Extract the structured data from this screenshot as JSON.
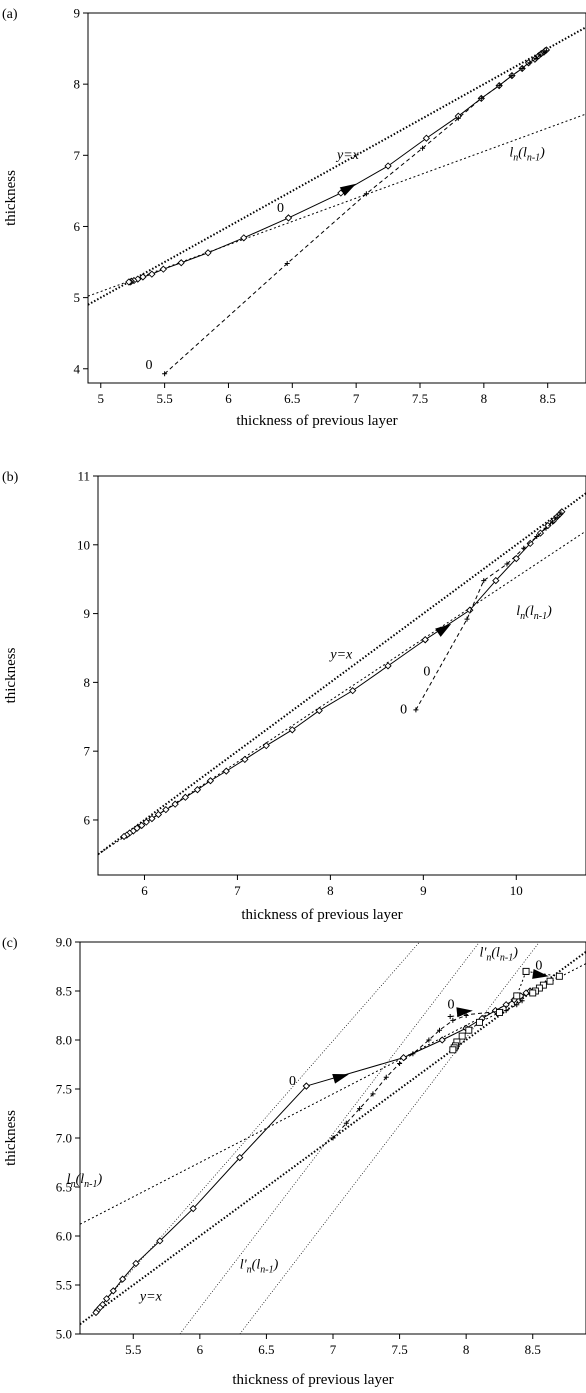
{
  "chart_data": [
    {
      "type": "line",
      "panel_label": "(a)",
      "xlabel": "thickness of previous layer",
      "ylabel": "thickness",
      "xlim": [
        4.9,
        8.8
      ],
      "ylim": [
        3.8,
        9.0
      ],
      "xticks": [
        5,
        5.5,
        6,
        6.5,
        7,
        7.5,
        8,
        8.5
      ],
      "xtick_labels": [
        "5",
        "5.5",
        "6",
        "6.5",
        "7",
        "7.5",
        "8",
        "8.5"
      ],
      "yticks": [
        4,
        5,
        6,
        7,
        8,
        9
      ],
      "ytick_labels": [
        "4",
        "5",
        "6",
        "7",
        "8",
        "9"
      ],
      "lines": [
        {
          "style": "dotted-bold",
          "points": [
            [
              4.9,
              4.9
            ],
            [
              8.8,
              8.8
            ]
          ]
        },
        {
          "style": "dotted",
          "points": [
            [
              4.9,
              5.02
            ],
            [
              8.8,
              7.58
            ]
          ]
        }
      ],
      "series": [
        {
          "style": "solid",
          "marker": "diamond",
          "points": [
            [
              6.47,
              6.12
            ],
            [
              6.12,
              5.84
            ],
            [
              5.84,
              5.63
            ],
            [
              5.63,
              5.49
            ],
            [
              5.49,
              5.4
            ],
            [
              5.4,
              5.33
            ],
            [
              5.33,
              5.29
            ],
            [
              5.29,
              5.26
            ],
            [
              5.26,
              5.24
            ],
            [
              5.24,
              5.23
            ],
            [
              5.23,
              5.22
            ],
            [
              5.22,
              5.22
            ]
          ]
        },
        {
          "style": "solid",
          "marker": "diamond",
          "points": [
            [
              6.47,
              6.12
            ],
            [
              6.88,
              6.47
            ],
            [
              7.25,
              6.85
            ],
            [
              7.55,
              7.24
            ],
            [
              7.8,
              7.55
            ],
            [
              7.98,
              7.8
            ],
            [
              8.12,
              7.98
            ],
            [
              8.22,
              8.12
            ],
            [
              8.3,
              8.22
            ],
            [
              8.35,
              8.3
            ],
            [
              8.4,
              8.35
            ],
            [
              8.43,
              8.4
            ],
            [
              8.45,
              8.43
            ],
            [
              8.47,
              8.45
            ],
            [
              8.48,
              8.47
            ],
            [
              8.49,
              8.48
            ]
          ]
        },
        {
          "style": "dashed",
          "marker": "plus",
          "points": [
            [
              5.5,
              3.93
            ],
            [
              6.46,
              5.48
            ],
            [
              7.08,
              6.46
            ],
            [
              7.52,
              7.1
            ],
            [
              7.8,
              7.52
            ],
            [
              7.98,
              7.8
            ],
            [
              8.12,
              7.98
            ],
            [
              8.22,
              8.12
            ],
            [
              8.3,
              8.22
            ],
            [
              8.36,
              8.3
            ],
            [
              8.41,
              8.36
            ],
            [
              8.44,
              8.41
            ],
            [
              8.47,
              8.44
            ],
            [
              8.49,
              8.47
            ]
          ]
        }
      ],
      "arrows": [
        [
          7.0,
          6.6
        ]
      ],
      "annotations": [
        {
          "text": "y=x",
          "at": [
            6.85,
            6.95
          ]
        },
        {
          "text": "l_n(l_{n-1})",
          "at": [
            8.2,
            6.98
          ]
        },
        {
          "text": "0",
          "at": [
            6.38,
            6.2
          ]
        },
        {
          "text": "0",
          "at": [
            5.35,
            4.0
          ]
        }
      ]
    },
    {
      "type": "line",
      "panel_label": "(b)",
      "xlabel": "thickness of previous layer",
      "ylabel": "thickness",
      "xlim": [
        5.5,
        10.75
      ],
      "ylim": [
        5.2,
        11.0
      ],
      "xticks": [
        6,
        7,
        8,
        9,
        10
      ],
      "xtick_labels": [
        "6",
        "7",
        "8",
        "9",
        "10"
      ],
      "yticks": [
        6,
        7,
        8,
        9,
        10,
        11
      ],
      "ytick_labels": [
        "6",
        "7",
        "8",
        "9",
        "10",
        "11"
      ],
      "lines": [
        {
          "style": "dotted-bold",
          "points": [
            [
              5.5,
              5.5
            ],
            [
              10.75,
              10.75
            ]
          ]
        },
        {
          "style": "dotted",
          "points": [
            [
              5.5,
              5.5
            ],
            [
              10.75,
              10.2
            ]
          ]
        }
      ],
      "series": [
        {
          "style": "solid",
          "marker": "diamond",
          "points": [
            [
              9.02,
              8.62
            ],
            [
              8.62,
              8.24
            ],
            [
              8.24,
              7.88
            ],
            [
              7.88,
              7.59
            ],
            [
              7.59,
              7.31
            ],
            [
              7.31,
              7.08
            ],
            [
              7.08,
              6.88
            ],
            [
              6.88,
              6.71
            ],
            [
              6.71,
              6.57
            ],
            [
              6.57,
              6.44
            ],
            [
              6.44,
              6.33
            ],
            [
              6.33,
              6.23
            ],
            [
              6.23,
              6.15
            ],
            [
              6.15,
              6.08
            ],
            [
              6.08,
              6.02
            ],
            [
              6.02,
              5.97
            ],
            [
              5.97,
              5.92
            ],
            [
              5.92,
              5.88
            ],
            [
              5.88,
              5.84
            ],
            [
              5.84,
              5.81
            ],
            [
              5.81,
              5.78
            ],
            [
              5.78,
              5.76
            ]
          ]
        },
        {
          "style": "solid",
          "marker": "diamond",
          "points": [
            [
              9.02,
              8.62
            ],
            [
              9.5,
              9.05
            ],
            [
              9.78,
              9.48
            ],
            [
              10.0,
              9.8
            ],
            [
              10.15,
              10.02
            ],
            [
              10.26,
              10.17
            ],
            [
              10.34,
              10.28
            ],
            [
              10.4,
              10.35
            ],
            [
              10.44,
              10.41
            ],
            [
              10.47,
              10.45
            ],
            [
              10.49,
              10.48
            ]
          ]
        },
        {
          "style": "dashed",
          "marker": "plus",
          "points": [
            [
              8.92,
              7.6
            ],
            [
              9.47,
              8.92
            ],
            [
              9.65,
              9.48
            ],
            [
              9.9,
              9.72
            ],
            [
              10.08,
              9.95
            ],
            [
              10.22,
              10.12
            ],
            [
              10.32,
              10.24
            ],
            [
              10.39,
              10.33
            ],
            [
              10.44,
              10.4
            ],
            [
              10.48,
              10.46
            ]
          ]
        }
      ],
      "arrows": [
        [
          9.3,
          8.85
        ]
      ],
      "annotations": [
        {
          "text": "y=x",
          "at": [
            8.0,
            8.35
          ]
        },
        {
          "text": "l_n(l_{n-1})",
          "at": [
            10.0,
            8.98
          ]
        },
        {
          "text": "0",
          "at": [
            9.0,
            8.1
          ]
        },
        {
          "text": "0",
          "at": [
            8.75,
            7.55
          ]
        }
      ]
    },
    {
      "type": "line",
      "panel_label": "(c)",
      "xlabel": "thickness of previous layer",
      "ylabel": "thickness",
      "xlim": [
        5.1,
        8.9
      ],
      "ylim": [
        5.0,
        9.0
      ],
      "xticks": [
        5.5,
        6,
        6.5,
        7,
        7.5,
        8,
        8.5
      ],
      "xtick_labels": [
        "5.5",
        "6",
        "6.5",
        "7",
        "7.5",
        "8",
        "8.5"
      ],
      "yticks": [
        5.0,
        5.5,
        6.0,
        6.5,
        7.0,
        7.5,
        8.0,
        8.5,
        9.0
      ],
      "ytick_labels": [
        "5.0",
        "5.5",
        "6.0",
        "6.5",
        "7.0",
        "7.5",
        "8.0",
        "8.5",
        "9.0"
      ],
      "lines": [
        {
          "style": "dotted-bold",
          "points": [
            [
              5.1,
              5.1
            ],
            [
              8.9,
              8.9
            ]
          ]
        },
        {
          "style": "dotted",
          "points": [
            [
              5.1,
              6.12
            ],
            [
              8.9,
              8.78
            ]
          ]
        },
        {
          "style": "dotted-thin",
          "points": [
            [
              5.2,
              5.2
            ],
            [
              7.65,
              9.0
            ]
          ]
        },
        {
          "style": "dotted-thin",
          "points": [
            [
              5.85,
              5.0
            ],
            [
              8.1,
              9.0
            ]
          ]
        },
        {
          "style": "dotted-thin",
          "points": [
            [
              6.3,
              5.0
            ],
            [
              8.55,
              9.0
            ]
          ]
        }
      ],
      "series": [
        {
          "style": "solid",
          "marker": "diamond",
          "points": [
            [
              6.8,
              7.53
            ],
            [
              6.3,
              6.8
            ],
            [
              5.95,
              6.28
            ],
            [
              5.7,
              5.95
            ],
            [
              5.52,
              5.72
            ],
            [
              5.42,
              5.56
            ],
            [
              5.35,
              5.44
            ],
            [
              5.3,
              5.36
            ],
            [
              5.27,
              5.3
            ],
            [
              5.25,
              5.27
            ],
            [
              5.23,
              5.24
            ],
            [
              5.22,
              5.22
            ]
          ]
        },
        {
          "style": "solid",
          "marker": "diamond",
          "points": [
            [
              6.8,
              7.53
            ],
            [
              7.53,
              7.82
            ],
            [
              7.82,
              8.0
            ],
            [
              8.0,
              8.12
            ],
            [
              8.12,
              8.22
            ],
            [
              8.22,
              8.3
            ],
            [
              8.3,
              8.36
            ],
            [
              8.36,
              8.41
            ],
            [
              8.41,
              8.45
            ],
            [
              8.45,
              8.48
            ],
            [
              8.48,
              8.5
            ]
          ]
        },
        {
          "style": "dashed",
          "marker": "plus",
          "points": [
            [
              7.0,
              7.0
            ],
            [
              7.1,
              7.15
            ],
            [
              7.2,
              7.3
            ],
            [
              7.3,
              7.45
            ],
            [
              7.4,
              7.62
            ],
            [
              7.5,
              7.76
            ],
            [
              7.6,
              7.86
            ],
            [
              7.72,
              8.0
            ],
            [
              7.8,
              8.1
            ],
            [
              7.9,
              8.2
            ],
            [
              8.0,
              8.25
            ]
          ]
        },
        {
          "style": "dashed",
          "marker": "plus",
          "points": [
            [
              7.88,
              8.24
            ],
            [
              8.3,
              8.3
            ],
            [
              8.38,
              8.36
            ],
            [
              8.42,
              8.4
            ]
          ]
        },
        {
          "style": "dotted",
          "marker": "square",
          "points": [
            [
              8.45,
              8.7
            ],
            [
              8.38,
              8.45
            ],
            [
              8.25,
              8.28
            ],
            [
              8.1,
              8.18
            ],
            [
              8.02,
              8.1
            ],
            [
              7.97,
              8.04
            ],
            [
              7.93,
              7.98
            ],
            [
              7.92,
              7.94
            ],
            [
              7.91,
              7.92
            ],
            [
              7.9,
              7.9
            ]
          ]
        },
        {
          "style": "dotted",
          "marker": "square",
          "points": [
            [
              8.45,
              8.7
            ],
            [
              8.7,
              8.65
            ],
            [
              8.63,
              8.6
            ],
            [
              8.58,
              8.56
            ],
            [
              8.55,
              8.53
            ],
            [
              8.52,
              8.5
            ],
            [
              8.5,
              8.48
            ]
          ]
        }
      ],
      "arrows": [
        [
          7.12,
          7.65
        ],
        [
          8.05,
          8.3
        ],
        [
          8.62,
          8.65
        ]
      ],
      "annotations": [
        {
          "text": "l'_n(l_{n-1})",
          "at": [
            8.1,
            8.85
          ]
        },
        {
          "text": "0",
          "at": [
            8.52,
            8.72
          ]
        },
        {
          "text": "0",
          "at": [
            7.86,
            8.32
          ]
        },
        {
          "text": "0",
          "at": [
            6.67,
            7.54
          ]
        },
        {
          "text": "l_n(l_{n-1})",
          "at": [
            5.0,
            6.54
          ]
        },
        {
          "text": "y=x",
          "at": [
            5.55,
            5.34
          ]
        },
        {
          "text": "l'_n(l_{n-1})",
          "at": [
            6.3,
            5.67
          ]
        }
      ]
    }
  ]
}
